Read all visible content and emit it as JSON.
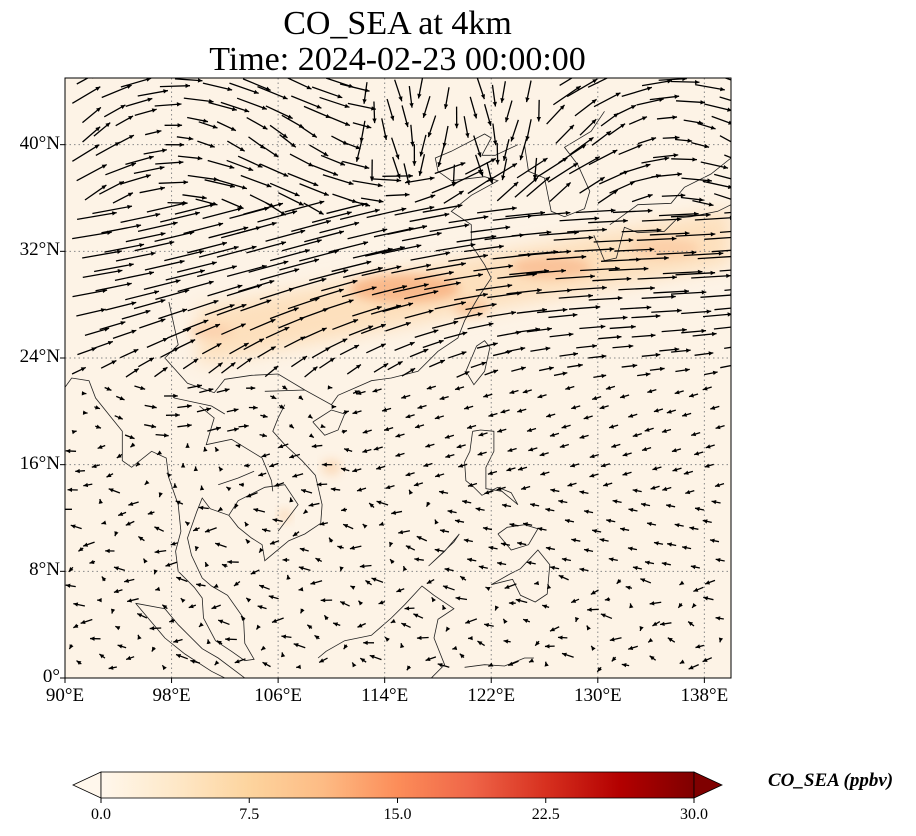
{
  "title": {
    "line1": "CO_SEA at 4km",
    "line2": "Time: 2024-02-23 00:00:00"
  },
  "map": {
    "projection": "PlateCarree",
    "lon_range": [
      90,
      140
    ],
    "lat_range": [
      0,
      45
    ],
    "gridlines": true,
    "gridline_style": "dotted",
    "coastlines": true,
    "wind_vectors": true,
    "x_ticks": [
      "90°E",
      "98°E",
      "106°E",
      "114°E",
      "122°E",
      "130°E",
      "138°E"
    ],
    "y_ticks": [
      "0°",
      "8°N",
      "16°N",
      "24°N",
      "32°N",
      "40°N"
    ],
    "x_tick_values": [
      90,
      98,
      106,
      114,
      122,
      130,
      138
    ],
    "y_tick_values": [
      0,
      8,
      16,
      24,
      32,
      40
    ]
  },
  "colorbar": {
    "label": "CO_SEA (ppbv)",
    "colormap": "OrRd",
    "ticks": [
      "0.0",
      "7.5",
      "15.0",
      "22.5",
      "30.0"
    ],
    "tick_values": [
      0,
      7.5,
      15,
      22.5,
      30
    ],
    "extend": "both",
    "colors": [
      "#fff7ec",
      "#fee8c8",
      "#fdd49e",
      "#fdbb84",
      "#fc8d59",
      "#ef6548",
      "#d7301f",
      "#b30000",
      "#7f0000"
    ]
  },
  "plume_band": {
    "lon_start": 100,
    "lon_end": 140,
    "lat_center_start": 25.5,
    "lat_center_end": 33,
    "peak_value": 12
  }
}
